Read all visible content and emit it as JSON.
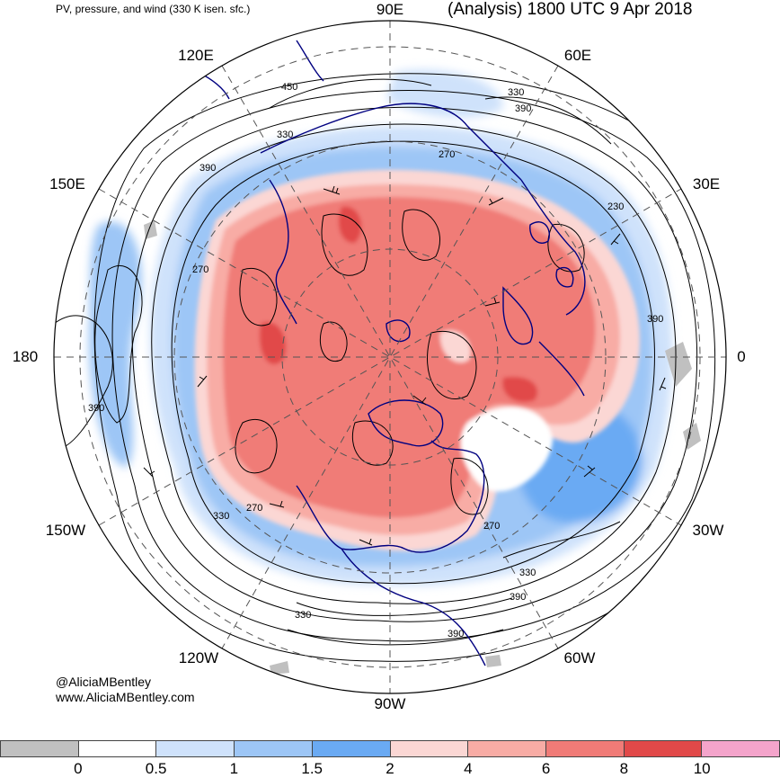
{
  "header": {
    "product": "PV, pressure, and wind (330 K isen. sfc.)",
    "valid": "(Analysis) 1800 UTC 9 Apr 2018"
  },
  "longitude_labels": [
    {
      "text": "90E"
    },
    {
      "text": "60E"
    },
    {
      "text": "30E"
    },
    {
      "text": "0"
    },
    {
      "text": "30W"
    },
    {
      "text": "60W"
    },
    {
      "text": "90W"
    },
    {
      "text": "120W"
    },
    {
      "text": "150W"
    },
    {
      "text": "180"
    },
    {
      "text": "150E"
    },
    {
      "text": "120E"
    }
  ],
  "contour_labels": [
    "450",
    "330",
    "390",
    "330",
    "390",
    "270",
    "230",
    "390",
    "270",
    "390",
    "330",
    "270",
    "330",
    "270",
    "330",
    "390",
    "390"
  ],
  "credit": {
    "handle": "@AliciaMBentley",
    "site": "www.AliciaMBentley.com"
  },
  "colorbar": {
    "colors": [
      "#c0c0c0",
      "#ffffff",
      "#cfe2fb",
      "#9dc6f6",
      "#6aaaf3",
      "#fbd7d4",
      "#f8aca5",
      "#f07b77",
      "#e14949",
      "#f4a4cb"
    ],
    "ticks": [
      "0",
      "0.5",
      "1",
      "1.5",
      "2",
      "4",
      "6",
      "8",
      "10"
    ]
  },
  "map_colors": {
    "pv_high": "#f07b77",
    "pv_mid": "#f8aca5",
    "pv_low": "#fbd7d4",
    "pv_blue_light": "#cfe2fb",
    "pv_blue": "#9dc6f6",
    "pv_blue_dark": "#6aaaf3",
    "coastline": "#000080",
    "isobar": "#000000",
    "graticule": "#555555"
  }
}
